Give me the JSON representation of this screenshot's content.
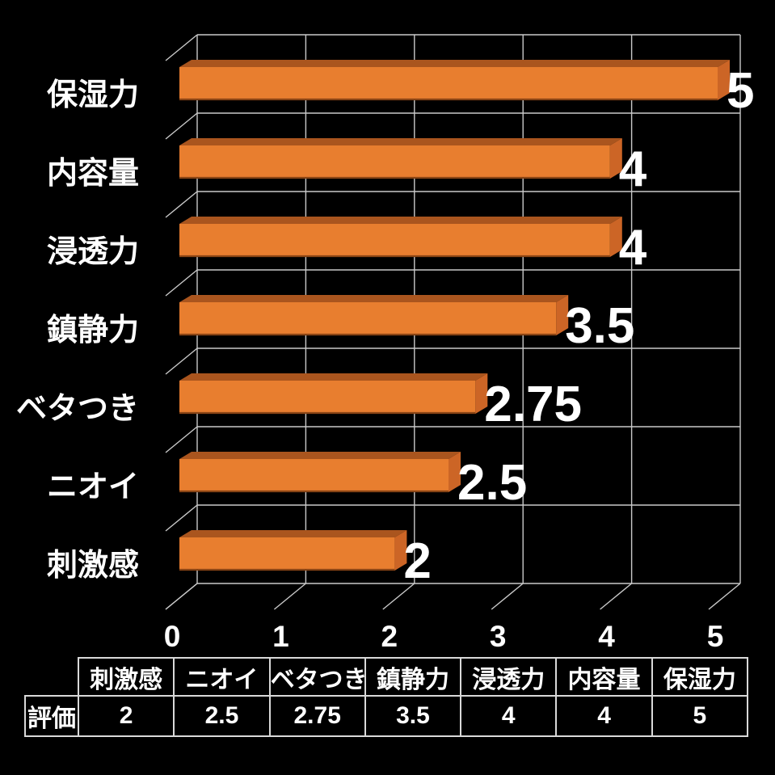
{
  "chart_data": {
    "type": "bar",
    "orientation": "horizontal",
    "style": "3d-black-background",
    "title": "",
    "xlabel": "",
    "ylabel": "",
    "categories": [
      "保湿力",
      "内容量",
      "浸透力",
      "鎮静力",
      "ベタつき",
      "ニオイ",
      "刺激感"
    ],
    "values": [
      5,
      4,
      4,
      3.5,
      2.75,
      2.5,
      2
    ],
    "value_labels": [
      "5",
      "4",
      "4",
      "3.5",
      "2.75",
      "2.5",
      "2"
    ],
    "x_ticks": [
      "0",
      "1",
      "2",
      "3",
      "4",
      "5"
    ],
    "xlim": [
      0,
      5
    ],
    "grid": true,
    "legend": "none",
    "colors": {
      "bar_front": "#E87E2F",
      "bar_top": "#AA551E",
      "bar_side": "#CC6526",
      "bar_bottom_edge": "#8A4515",
      "grid": "#C9C9C9",
      "text": "#FFFFFF",
      "background": "#000000"
    }
  },
  "table": {
    "row_header": "評価",
    "columns": [
      "刺激感",
      "ニオイ",
      "ベタつき",
      "鎮静力",
      "浸透力",
      "内容量",
      "保湿力"
    ],
    "values": [
      "2",
      "2.5",
      "2.75",
      "3.5",
      "4",
      "4",
      "5"
    ]
  }
}
